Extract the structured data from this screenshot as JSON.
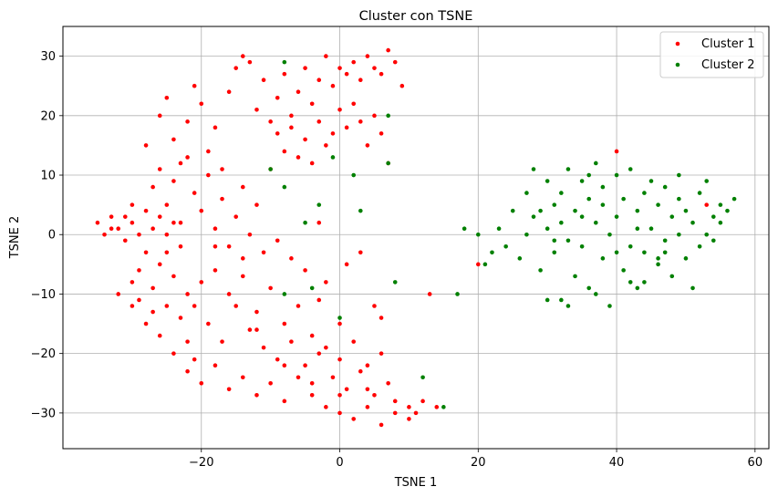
{
  "chart_data": {
    "type": "scatter",
    "title": "Cluster con TSNE",
    "xlabel": "TSNE 1",
    "ylabel": "TSNE 2",
    "xlim": [
      -40,
      62
    ],
    "ylim": [
      -36,
      35
    ],
    "xticks": [
      -20,
      0,
      20,
      40,
      60
    ],
    "yticks": [
      -30,
      -20,
      -10,
      0,
      10,
      20,
      30
    ],
    "xtick_labels": [
      "−20",
      "0",
      "20",
      "40",
      "60"
    ],
    "ytick_labels": [
      "−30",
      "−20",
      "−10",
      "0",
      "10",
      "20",
      "30"
    ],
    "grid": true,
    "legend_position": "top-right",
    "colors": {
      "Cluster 1": "#ff0000",
      "Cluster 2": "#008000",
      "grid": "#b0b0b0"
    },
    "series": [
      {
        "name": "Cluster 1",
        "points": [
          [
            -35,
            2
          ],
          [
            -34,
            0
          ],
          [
            -33,
            3
          ],
          [
            -32,
            1
          ],
          [
            -31,
            -1
          ],
          [
            -31,
            3
          ],
          [
            -30,
            2
          ],
          [
            -30,
            -8
          ],
          [
            -29,
            -6
          ],
          [
            -29,
            0
          ],
          [
            -28,
            4
          ],
          [
            -28,
            -3
          ],
          [
            -27,
            1
          ],
          [
            -27,
            -9
          ],
          [
            -26,
            -5
          ],
          [
            -26,
            3
          ],
          [
            -25,
            0
          ],
          [
            -25,
            -12
          ],
          [
            -24,
            -7
          ],
          [
            -24,
            2
          ],
          [
            -23,
            -2
          ],
          [
            -23,
            -14
          ],
          [
            -22,
            -10
          ],
          [
            -22,
            -18
          ],
          [
            -21,
            -21
          ],
          [
            -30,
            -12
          ],
          [
            -28,
            -15
          ],
          [
            -26,
            -17
          ],
          [
            -24,
            -20
          ],
          [
            -22,
            -23
          ],
          [
            -20,
            -25
          ],
          [
            -18,
            -22
          ],
          [
            -16,
            -26
          ],
          [
            -14,
            -24
          ],
          [
            -12,
            -27
          ],
          [
            -10,
            -25
          ],
          [
            -8,
            -28
          ],
          [
            -6,
            -24
          ],
          [
            -4,
            -27
          ],
          [
            -2,
            -29
          ],
          [
            0,
            -30
          ],
          [
            2,
            -31
          ],
          [
            4,
            -29
          ],
          [
            6,
            -32
          ],
          [
            8,
            -30
          ],
          [
            10,
            -29
          ],
          [
            12,
            -28
          ],
          [
            14,
            -29
          ],
          [
            -19,
            -15
          ],
          [
            -17,
            -18
          ],
          [
            -15,
            -12
          ],
          [
            -13,
            -16
          ],
          [
            -11,
            -19
          ],
          [
            -9,
            -21
          ],
          [
            -7,
            -18
          ],
          [
            -5,
            -22
          ],
          [
            -3,
            -20
          ],
          [
            -1,
            -24
          ],
          [
            1,
            -26
          ],
          [
            3,
            -23
          ],
          [
            5,
            -27
          ],
          [
            7,
            -25
          ],
          [
            -20,
            -8
          ],
          [
            -18,
            -6
          ],
          [
            -16,
            -10
          ],
          [
            -14,
            -7
          ],
          [
            -12,
            -13
          ],
          [
            -10,
            -9
          ],
          [
            -8,
            -15
          ],
          [
            -6,
            -12
          ],
          [
            -4,
            -17
          ],
          [
            -2,
            -19
          ],
          [
            0,
            -21
          ],
          [
            2,
            -18
          ],
          [
            4,
            -22
          ],
          [
            6,
            -20
          ],
          [
            -26,
            20
          ],
          [
            -25,
            23
          ],
          [
            -24,
            16
          ],
          [
            -23,
            12
          ],
          [
            -22,
            19
          ],
          [
            -21,
            25
          ],
          [
            -20,
            22
          ],
          [
            -19,
            14
          ],
          [
            -18,
            18
          ],
          [
            -17,
            11
          ],
          [
            -16,
            24
          ],
          [
            -15,
            28
          ],
          [
            -14,
            30
          ],
          [
            -13,
            29
          ],
          [
            -12,
            21
          ],
          [
            -11,
            26
          ],
          [
            -10,
            19
          ],
          [
            -9,
            23
          ],
          [
            -8,
            27
          ],
          [
            -7,
            20
          ],
          [
            -6,
            24
          ],
          [
            -5,
            28
          ],
          [
            -4,
            22
          ],
          [
            -3,
            26
          ],
          [
            -2,
            30
          ],
          [
            -1,
            25
          ],
          [
            0,
            28
          ],
          [
            1,
            27
          ],
          [
            2,
            29
          ],
          [
            3,
            26
          ],
          [
            4,
            30
          ],
          [
            5,
            28
          ],
          [
            6,
            27
          ],
          [
            7,
            31
          ],
          [
            8,
            29
          ],
          [
            9,
            25
          ],
          [
            -28,
            15
          ],
          [
            -27,
            8
          ],
          [
            -26,
            11
          ],
          [
            -25,
            5
          ],
          [
            -24,
            9
          ],
          [
            -23,
            2
          ],
          [
            -22,
            13
          ],
          [
            -21,
            7
          ],
          [
            -20,
            4
          ],
          [
            -19,
            10
          ],
          [
            -18,
            1
          ],
          [
            -17,
            6
          ],
          [
            -16,
            -2
          ],
          [
            -15,
            3
          ],
          [
            -14,
            8
          ],
          [
            -13,
            0
          ],
          [
            -12,
            5
          ],
          [
            -11,
            -3
          ],
          [
            -10,
            11
          ],
          [
            -9,
            17
          ],
          [
            -8,
            14
          ],
          [
            -7,
            18
          ],
          [
            -6,
            13
          ],
          [
            -5,
            16
          ],
          [
            -4,
            12
          ],
          [
            -3,
            19
          ],
          [
            -2,
            15
          ],
          [
            -1,
            17
          ],
          [
            0,
            21
          ],
          [
            1,
            18
          ],
          [
            2,
            22
          ],
          [
            3,
            19
          ],
          [
            4,
            15
          ],
          [
            5,
            20
          ],
          [
            6,
            17
          ],
          [
            7,
            12
          ],
          [
            -9,
            -1
          ],
          [
            -7,
            -4
          ],
          [
            -5,
            -6
          ],
          [
            -3,
            2
          ],
          [
            -2,
            -8
          ],
          [
            1,
            -5
          ],
          [
            3,
            -3
          ],
          [
            5,
            -12
          ],
          [
            6,
            -14
          ],
          [
            0,
            -15
          ],
          [
            -3,
            -11
          ],
          [
            13,
            -10
          ],
          [
            20,
            -5
          ],
          [
            53,
            5
          ],
          [
            40,
            14
          ],
          [
            -32,
            -10
          ],
          [
            -29,
            -11
          ],
          [
            -27,
            -13
          ],
          [
            -30,
            5
          ],
          [
            -33,
            1
          ],
          [
            -25,
            -3
          ],
          [
            -18,
            -2
          ],
          [
            -14,
            -4
          ],
          [
            -12,
            -16
          ],
          [
            -8,
            -22
          ],
          [
            -4,
            -25
          ],
          [
            0,
            -27
          ],
          [
            4,
            -26
          ],
          [
            8,
            -28
          ],
          [
            10,
            -31
          ],
          [
            11,
            -30
          ],
          [
            -21,
            -12
          ]
        ]
      },
      {
        "name": "Cluster 2",
        "points": [
          [
            -8,
            29
          ],
          [
            -10,
            11
          ],
          [
            -8,
            8
          ],
          [
            -5,
            2
          ],
          [
            -3,
            5
          ],
          [
            -1,
            13
          ],
          [
            2,
            10
          ],
          [
            3,
            4
          ],
          [
            7,
            20
          ],
          [
            7,
            12
          ],
          [
            8,
            -8
          ],
          [
            -8,
            -10
          ],
          [
            -4,
            -9
          ],
          [
            0,
            -14
          ],
          [
            12,
            -24
          ],
          [
            15,
            -29
          ],
          [
            17,
            -10
          ],
          [
            18,
            1
          ],
          [
            20,
            0
          ],
          [
            21,
            -5
          ],
          [
            22,
            -3
          ],
          [
            23,
            1
          ],
          [
            24,
            -2
          ],
          [
            25,
            4
          ],
          [
            26,
            -4
          ],
          [
            27,
            7
          ],
          [
            27,
            0
          ],
          [
            28,
            11
          ],
          [
            28,
            3
          ],
          [
            29,
            -6
          ],
          [
            30,
            9
          ],
          [
            30,
            1
          ],
          [
            31,
            5
          ],
          [
            31,
            -3
          ],
          [
            32,
            -11
          ],
          [
            32,
            7
          ],
          [
            33,
            -1
          ],
          [
            33,
            11
          ],
          [
            34,
            4
          ],
          [
            34,
            -7
          ],
          [
            35,
            9
          ],
          [
            35,
            -2
          ],
          [
            36,
            6
          ],
          [
            36,
            -9
          ],
          [
            37,
            2
          ],
          [
            37,
            12
          ],
          [
            38,
            -4
          ],
          [
            38,
            8
          ],
          [
            39,
            0
          ],
          [
            39,
            -12
          ],
          [
            40,
            10
          ],
          [
            40,
            3
          ],
          [
            41,
            -6
          ],
          [
            41,
            6
          ],
          [
            42,
            -2
          ],
          [
            42,
            11
          ],
          [
            43,
            4
          ],
          [
            43,
            -9
          ],
          [
            44,
            7
          ],
          [
            44,
            -3
          ],
          [
            45,
            1
          ],
          [
            45,
            9
          ],
          [
            46,
            -5
          ],
          [
            46,
            5
          ],
          [
            47,
            -1
          ],
          [
            47,
            8
          ],
          [
            48,
            3
          ],
          [
            48,
            -7
          ],
          [
            49,
            0
          ],
          [
            49,
            6
          ],
          [
            50,
            -4
          ],
          [
            50,
            4
          ],
          [
            51,
            -9
          ],
          [
            51,
            2
          ],
          [
            52,
            7
          ],
          [
            52,
            -2
          ],
          [
            53,
            9
          ],
          [
            54,
            3
          ],
          [
            55,
            5
          ],
          [
            56,
            4
          ],
          [
            57,
            6
          ],
          [
            55,
            2
          ],
          [
            54,
            -1
          ],
          [
            53,
            0
          ],
          [
            30,
            -11
          ],
          [
            33,
            -12
          ],
          [
            37,
            -10
          ],
          [
            44,
            -8
          ],
          [
            46,
            -4
          ],
          [
            29,
            4
          ],
          [
            31,
            -1
          ],
          [
            35,
            3
          ],
          [
            38,
            5
          ],
          [
            40,
            -3
          ],
          [
            42,
            -8
          ],
          [
            43,
            1
          ],
          [
            47,
            -3
          ],
          [
            49,
            10
          ],
          [
            36,
            10
          ],
          [
            32,
            2
          ]
        ]
      }
    ]
  }
}
